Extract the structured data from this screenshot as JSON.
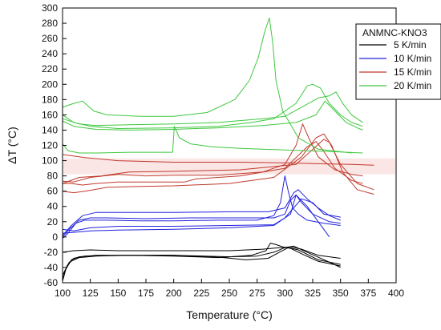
{
  "chart_data": {
    "type": "line",
    "title": "",
    "xlabel": "Temperature (°C)",
    "ylabel": "ΔT (°C)",
    "xlim": [
      100,
      400
    ],
    "ylim": [
      -60,
      300
    ],
    "x_ticks": [
      100,
      125,
      150,
      175,
      200,
      225,
      250,
      275,
      300,
      325,
      350,
      375,
      400
    ],
    "y_ticks": [
      -60,
      -40,
      -20,
      0,
      20,
      40,
      60,
      80,
      100,
      120,
      140,
      160,
      180,
      200,
      220,
      240,
      260,
      280,
      300
    ],
    "grid": false,
    "legend": {
      "title": "ANMNC-KNO3",
      "position": "top-right",
      "entries": [
        "5 K/min",
        "10 K/min",
        "15 K/min",
        "20 K/min"
      ]
    },
    "series": [
      {
        "name": "5 K/min",
        "color": "#000000",
        "curves": [
          {
            "x": [
              100,
              103,
              108,
              115,
              130,
              160,
              200,
              240,
              270,
              283,
              287,
              292,
              298,
              305,
              315,
              330,
              350
            ],
            "y": [
              -58,
              -42,
              -30,
              -26,
              -24,
              -24,
              -25,
              -27,
              -24,
              -18,
              -8,
              -10,
              -13,
              -15,
              -22,
              -32,
              -38
            ]
          },
          {
            "x": [
              100,
              104,
              110,
              120,
              150,
              200,
              250,
              275,
              290,
              300,
              308,
              320,
              340,
              350
            ],
            "y": [
              -55,
              -38,
              -28,
              -25,
              -24,
              -24,
              -26,
              -25,
              -20,
              -14,
              -12,
              -20,
              -33,
              -40
            ]
          },
          {
            "x": [
              100,
              106,
              115,
              130,
              160,
              200,
              245,
              265,
              285,
              295,
              303,
              312,
              330,
              350
            ],
            "y": [
              -50,
              -33,
              -27,
              -25,
              -24,
              -24,
              -27,
              -30,
              -28,
              -20,
              -14,
              -17,
              -30,
              -36
            ]
          },
          {
            "x": [
              100,
              110,
              125,
              150,
              200,
              250,
              280,
              295,
              305,
              315,
              330,
              350
            ],
            "y": [
              -20,
              -18,
              -17,
              -18,
              -18,
              -18,
              -16,
              -14,
              -13,
              -16,
              -24,
              -28
            ]
          }
        ]
      },
      {
        "name": "10 K/min",
        "color": "#2020dd",
        "curves": [
          {
            "x": [
              100,
              105,
              112,
              120,
              140,
              170,
              200,
              240,
              275,
              290,
              296,
              300,
              303,
              307,
              312,
              320,
              335,
              350
            ],
            "y": [
              -2,
              5,
              18,
              22,
              22,
              21,
              21,
              22,
              22,
              28,
              45,
              80,
              60,
              38,
              30,
              22,
              18,
              15
            ]
          },
          {
            "x": [
              100,
              106,
              115,
              125,
              140,
              175,
              215,
              260,
              290,
              300,
              305,
              310,
              315,
              325,
              340,
              350
            ],
            "y": [
              0,
              10,
              22,
              25,
              25,
              24,
              25,
              25,
              25,
              30,
              48,
              55,
              45,
              30,
              20,
              18
            ]
          },
          {
            "x": [
              100,
              108,
              118,
              130,
              150,
              200,
              250,
              285,
              300,
              308,
              312,
              320,
              330,
              340,
              350
            ],
            "y": [
              2,
              15,
              28,
              32,
              32,
              32,
              33,
              33,
              38,
              58,
              62,
              50,
              38,
              28,
              22
            ]
          },
          {
            "x": [
              100,
              110,
              125,
              150,
              200,
              250,
              290,
              300,
              315,
              325,
              335,
              350
            ],
            "y": [
              10,
              8,
              12,
              14,
              14,
              15,
              16,
              25,
              50,
              45,
              30,
              26
            ]
          },
          {
            "x": [
              100,
              110,
              125,
              150,
              200,
              250,
              290,
              305,
              310,
              320,
              330,
              340
            ],
            "y": [
              5,
              6,
              8,
              9,
              10,
              12,
              15,
              30,
              55,
              40,
              20,
              0
            ]
          }
        ]
      },
      {
        "name": "15 K/min",
        "color": "#c0392b",
        "band": [
          82,
          103
        ],
        "curves": [
          {
            "x": [
              100,
              110,
              125,
              150,
              175,
              200,
              240,
              280,
              300,
              310,
              316,
              322,
              330,
              345,
              360,
              370
            ],
            "y": [
              73,
              72,
              78,
              82,
              80,
              81,
              81,
              85,
              95,
              120,
              148,
              128,
              105,
              88,
              82,
              80
            ]
          },
          {
            "x": [
              100,
              108,
              118,
              130,
              150,
              180,
              210,
              220,
              260,
              300,
              320,
              328,
              335,
              345,
              360,
              370
            ],
            "y": [
              70,
              70,
              68,
              70,
              72,
              72,
              72,
              76,
              80,
              90,
              118,
              125,
              112,
              90,
              74,
              70
            ]
          },
          {
            "x": [
              100,
              110,
              120,
              140,
              165,
              200,
              250,
              290,
              315,
              328,
              335,
              342,
              352,
              365,
              380
            ],
            "y": [
              60,
              58,
              60,
              65,
              66,
              67,
              70,
              78,
              105,
              130,
              135,
              120,
              85,
              62,
              56
            ]
          },
          {
            "x": [
              100,
              115,
              135,
              160,
              200,
              260,
              310,
              335,
              340,
              350,
              365,
              380
            ],
            "y": [
              70,
              78,
              80,
              85,
              86,
              88,
              95,
              128,
              124,
              95,
              70,
              62
            ]
          },
          {
            "x": [
              100,
              120,
              150,
              200,
              260,
              300,
              330,
              360,
              380
            ],
            "y": [
              108,
              104,
              100,
              98,
              98,
              97,
              96,
              95,
              94
            ]
          }
        ]
      },
      {
        "name": "20 K/min",
        "color": "#3ec83e",
        "curves": [
          {
            "x": [
              100,
              110,
              118,
              128,
              140,
              170,
              200,
              230,
              255,
              268,
              276,
              282,
              286,
              289,
              292,
              298,
              312,
              330,
              360
            ],
            "y": [
              170,
              175,
              178,
              165,
              160,
              158,
              158,
              163,
              180,
              205,
              235,
              270,
              287,
              255,
              205,
              165,
              130,
              115,
              110
            ]
          },
          {
            "x": [
              100,
              110,
              125,
              150,
              200,
              240,
              270,
              290,
              310,
              320,
              325,
              332,
              340,
              350,
              360,
              370
            ],
            "y": [
              160,
              150,
              145,
              142,
              143,
              145,
              150,
              155,
              175,
              198,
              200,
              195,
              175,
              160,
              150,
              145
            ]
          },
          {
            "x": [
              100,
              115,
              130,
              160,
              200,
              240,
              280,
              300,
              315,
              330,
              340,
              346,
              352,
              360,
              370
            ],
            "y": [
              155,
              148,
              146,
              147,
              148,
              150,
              155,
              158,
              170,
              182,
              185,
              190,
              175,
              160,
              150
            ]
          },
          {
            "x": [
              100,
              110,
              130,
              160,
              200,
              240,
              280,
              310,
              328,
              336,
              345,
              355,
              365,
              370
            ],
            "y": [
              152,
              145,
              141,
              140,
              141,
              143,
              146,
              150,
              160,
              178,
              165,
              150,
              143,
              140
            ]
          },
          {
            "x": [
              100,
              105,
              115,
              130,
              160,
              190,
              199,
              200.5,
              205,
              215,
              235,
              260,
              300,
              340,
              370
            ],
            "y": [
              122,
              113,
              110,
              110,
              111,
              111,
              111,
              145,
              130,
              122,
              118,
              116,
              114,
              112,
              110
            ]
          }
        ]
      }
    ]
  }
}
